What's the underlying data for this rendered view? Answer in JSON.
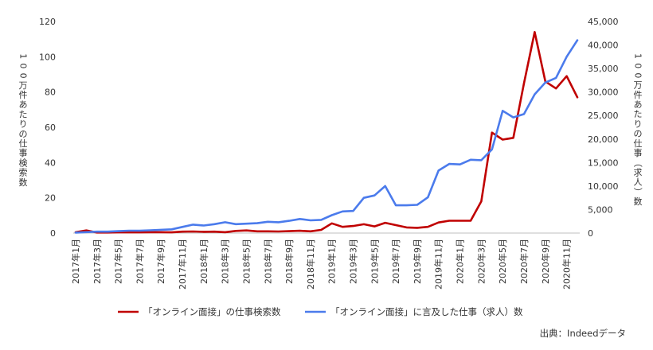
{
  "chart_data": {
    "type": "line",
    "x": [
      "2017年1月",
      "2017年2月",
      "2017年3月",
      "2017年4月",
      "2017年5月",
      "2017年6月",
      "2017年7月",
      "2017年8月",
      "2017年9月",
      "2017年10月",
      "2017年11月",
      "2017年12月",
      "2018年1月",
      "2018年2月",
      "2018年3月",
      "2018年4月",
      "2018年5月",
      "2018年6月",
      "2018年7月",
      "2018年8月",
      "2018年9月",
      "2018年10月",
      "2018年11月",
      "2018年12月",
      "2019年1月",
      "2019年2月",
      "2019年3月",
      "2019年4月",
      "2019年5月",
      "2019年6月",
      "2019年7月",
      "2019年8月",
      "2019年9月",
      "2019年10月",
      "2019年11月",
      "2019年12月",
      "2020年1月",
      "2020年2月",
      "2020年3月",
      "2020年4月",
      "2020年5月",
      "2020年6月",
      "2020年7月",
      "2020年8月",
      "2020年9月",
      "2020年10月",
      "2020年11月",
      "2020年12月"
    ],
    "x_tick_labels": [
      "2017年1月",
      "2017年3月",
      "2017年5月",
      "2017年7月",
      "2017年9月",
      "2017年11月",
      "2018年1月",
      "2018年3月",
      "2018年5月",
      "2018年7月",
      "2018年9月",
      "2018年11月",
      "2019年1月",
      "2019年3月",
      "2019年5月",
      "2019年7月",
      "2019年9月",
      "2019年11月",
      "2020年1月",
      "2020年3月",
      "2020年5月",
      "2020年7月",
      "2020年9月",
      "2020年11月"
    ],
    "series": [
      {
        "name": "「オンライン面接」の仕事検索数",
        "color": "#c00000",
        "axis": "left",
        "values": [
          0.5,
          1.5,
          0.3,
          0.3,
          0.4,
          0.4,
          0.4,
          0.5,
          0.5,
          0.4,
          0.8,
          0.9,
          0.7,
          0.8,
          0.5,
          1.2,
          1.5,
          1.0,
          1.0,
          0.9,
          1.1,
          1.3,
          1.0,
          1.8,
          5.5,
          3.5,
          4.0,
          5.0,
          3.8,
          5.8,
          4.5,
          3.2,
          3.0,
          3.5,
          6.0,
          7.0,
          7.0,
          7.0,
          18,
          57,
          53,
          54,
          85,
          114,
          86,
          82,
          89,
          77
        ]
      },
      {
        "name": "「オンライン面接」に言及した仕事（求人）数",
        "color": "#4b7bec",
        "axis": "right",
        "values": [
          100,
          200,
          300,
          300,
          400,
          500,
          500,
          600,
          700,
          800,
          1300,
          1800,
          1600,
          1900,
          2300,
          1900,
          2000,
          2100,
          2400,
          2300,
          2600,
          3000,
          2700,
          2800,
          3800,
          4600,
          4700,
          7500,
          8000,
          10000,
          5900,
          5900,
          6000,
          7600,
          13300,
          14700,
          14600,
          15600,
          15500,
          17800,
          26000,
          24600,
          25300,
          29500,
          32000,
          33000,
          37500,
          41000
        ]
      }
    ],
    "y_left": {
      "label": "100万件あたりの仕事検索数",
      "ylim": [
        0,
        120
      ],
      "ticks": [
        "0",
        "20",
        "40",
        "60",
        "80",
        "100",
        "120"
      ]
    },
    "y_right": {
      "label": "100万件あたりの仕事（求人）数",
      "ylim": [
        0,
        45000
      ],
      "ticks": [
        "0",
        "5,000",
        "10,000",
        "15,000",
        "20,000",
        "25,000",
        "30,000",
        "35,000",
        "40,000",
        "45,000"
      ]
    },
    "legend_position": "bottom",
    "grid": false
  },
  "source_note": "出典：Indeedデータ"
}
